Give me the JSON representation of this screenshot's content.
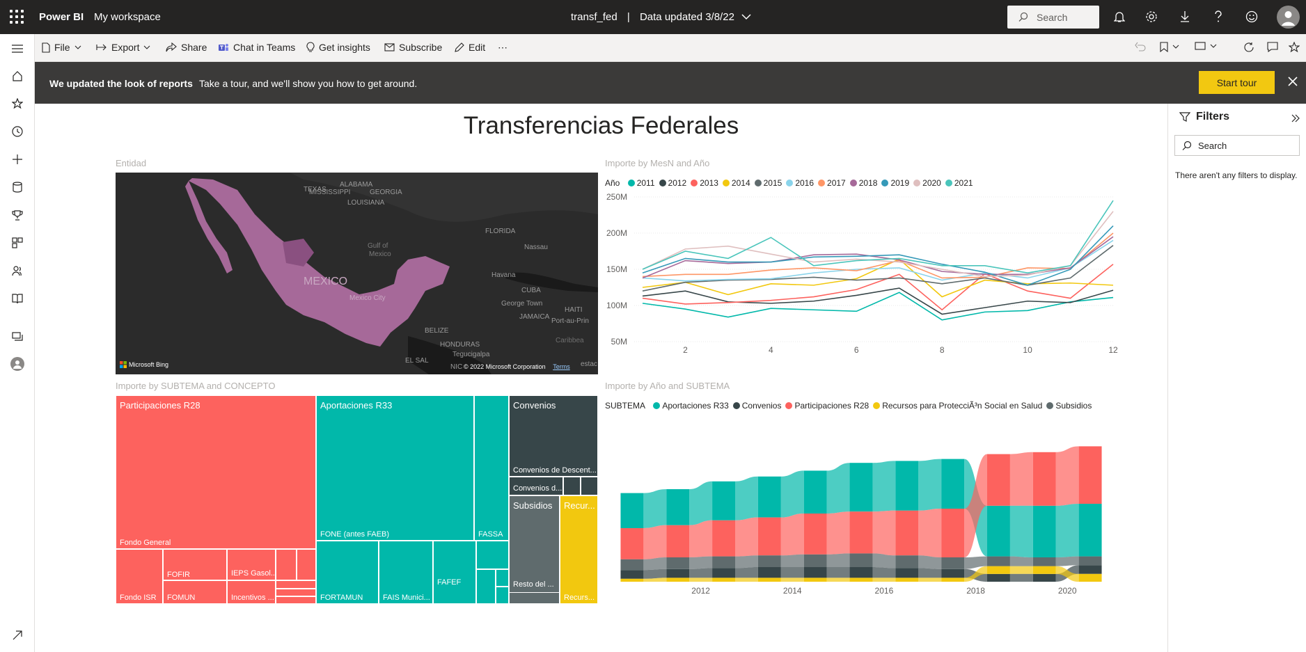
{
  "topbar": {
    "brand": "Power BI",
    "workspace": "My workspace",
    "report_name": "transf_fed",
    "separator": "|",
    "data_updated": "Data updated 3/8/22",
    "search_placeholder": "Search"
  },
  "toolbar": {
    "file": "File",
    "export": "Export",
    "share": "Share",
    "teams": "Chat in Teams",
    "insights": "Get insights",
    "subscribe": "Subscribe",
    "edit": "Edit",
    "more": "⋯"
  },
  "banner": {
    "bold": "We updated the look of reports",
    "text": "Take a tour, and we'll show you how to get around.",
    "button": "Start tour"
  },
  "filters": {
    "title": "Filters",
    "search_placeholder": "Search",
    "empty": "There aren't any filters to display."
  },
  "report": {
    "title": "Transferencias Federales"
  },
  "map": {
    "title": "Entidad",
    "labels": {
      "texas": "TEXAS",
      "mississippi": "MISSISSIPPI",
      "alabama": "ALABAMA",
      "georgia": "GEORGIA",
      "louisiana": "LOUISIANA",
      "florida": "FLORIDA",
      "gulf1": "Gulf of",
      "gulf2": "Mexico",
      "nassau": "Nassau",
      "havana": "Havana",
      "cuba": "CUBA",
      "george": "George Town",
      "jamaica": "JAMAICA",
      "haiti": "HAITI",
      "portau": "Port-au-Prin",
      "mexico": "MEXICO",
      "mexcity": "Mexico City",
      "belize": "BELIZE",
      "honduras": "HONDURAS",
      "tegu": "Tegucigalpa",
      "elsal": "EL SAL",
      "nic": "NIC",
      "carib": "Caribbea",
      "estac": "estac"
    },
    "bing": "Microsoft Bing",
    "copyright": "© 2022 Microsoft Corporation",
    "terms": "Terms"
  },
  "line_chart": {
    "title": "Importe by MesN and Año",
    "legend_label": "Año"
  },
  "treemap": {
    "title": "Importe by SUBTEMA and CONCEPTO",
    "tiles": {
      "part": "Participaciones R28",
      "fondo_general": "Fondo General",
      "fofir": "FOFIR",
      "ieps": "IEPS Gasol...",
      "fondo_isr": "Fondo ISR",
      "fomun": "FOMUN",
      "incentivos": "Incentivos ...",
      "aport": "Aportaciones R33",
      "fone": "FONE (antes FAEB)",
      "fassa": "FASSA",
      "fortamun": "FORTAMUN",
      "fais": "FAIS Munici...",
      "fafef": "FAFEF",
      "conv": "Convenios",
      "conv_desc": "Convenios de Descent...",
      "conv_d": "Convenios d...",
      "subs": "Subsidios",
      "resto": "Resto del ...",
      "recur": "Recur...",
      "recur2": "Recurs..."
    }
  },
  "ribbon_chart": {
    "title": "Importe by Año and SUBTEMA",
    "legend_label": "SUBTEMA"
  },
  "chart_data": [
    {
      "type": "line",
      "title": "Importe by MesN and Año",
      "legend_title": "Año",
      "x": [
        1,
        2,
        3,
        4,
        5,
        6,
        7,
        8,
        9,
        10,
        11,
        12
      ],
      "x_ticks": [
        2,
        4,
        6,
        8,
        10,
        12
      ],
      "y_ticks": [
        "50M",
        "100M",
        "150M",
        "200M",
        "250M"
      ],
      "ylim": [
        50,
        250
      ],
      "yunit": "M",
      "legend_position": "top-left",
      "series": [
        {
          "name": "2011",
          "color": "#01B8AA",
          "values": [
            103,
            95,
            84,
            96,
            94,
            92,
            118,
            80,
            91,
            93,
            105,
            111
          ]
        },
        {
          "name": "2012",
          "color": "#374649",
          "values": [
            113,
            120,
            105,
            103,
            106,
            114,
            124,
            88,
            97,
            106,
            104,
            121
          ]
        },
        {
          "name": "2013",
          "color": "#FD625E",
          "values": [
            110,
            102,
            104,
            107,
            112,
            122,
            143,
            94,
            144,
            120,
            110,
            157
          ]
        },
        {
          "name": "2014",
          "color": "#F2C80F",
          "values": [
            125,
            132,
            115,
            130,
            128,
            137,
            164,
            112,
            135,
            130,
            131,
            128
          ]
        },
        {
          "name": "2015",
          "color": "#5F6B6D",
          "values": [
            120,
            132,
            135,
            136,
            139,
            135,
            138,
            130,
            138,
            128,
            138,
            183
          ]
        },
        {
          "name": "2016",
          "color": "#8AD4EB",
          "values": [
            138,
            134,
            136,
            137,
            145,
            150,
            152,
            135,
            145,
            138,
            152,
            190
          ]
        },
        {
          "name": "2017",
          "color": "#FE9666",
          "values": [
            140,
            143,
            143,
            149,
            152,
            148,
            162,
            138,
            139,
            152,
            151,
            200
          ]
        },
        {
          "name": "2018",
          "color": "#A66999",
          "values": [
            138,
            162,
            158,
            160,
            170,
            171,
            163,
            147,
            143,
            143,
            152,
            195
          ]
        },
        {
          "name": "2019",
          "color": "#3599B8",
          "values": [
            145,
            165,
            160,
            160,
            167,
            168,
            170,
            157,
            146,
            128,
            150,
            210
          ]
        },
        {
          "name": "2020",
          "color": "#DFBFBF",
          "values": [
            150,
            178,
            182,
            171,
            160,
            164,
            160,
            150,
            140,
            142,
            155,
            230
          ]
        },
        {
          "name": "2021",
          "color": "#4AC5BB",
          "values": [
            150,
            175,
            165,
            194,
            155,
            162,
            165,
            155,
            155,
            145,
            155,
            245
          ]
        }
      ]
    },
    {
      "type": "treemap",
      "title": "Importe by SUBTEMA and CONCEPTO",
      "items": [
        {
          "group": "Participaciones R28",
          "children": [
            "Fondo General",
            "FOFIR",
            "IEPS Gasol...",
            "Fondo ISR",
            "FOMUN",
            "Incentivos ..."
          ]
        },
        {
          "group": "Aportaciones R33",
          "children": [
            "FONE (antes FAEB)",
            "FASSA",
            "FORTAMUN",
            "FAIS Munici...",
            "FAFEF"
          ]
        },
        {
          "group": "Convenios",
          "children": [
            "Convenios de Descent...",
            "Convenios d..."
          ]
        },
        {
          "group": "Subsidios",
          "children": [
            "Resto del ..."
          ]
        },
        {
          "group": "Recur...",
          "children": [
            "Recurs..."
          ]
        }
      ]
    },
    {
      "type": "ribbon",
      "title": "Importe by Año and SUBTEMA",
      "legend_title": "SUBTEMA",
      "legend_position": "top-left",
      "x": [
        2011,
        2012,
        2013,
        2014,
        2015,
        2016,
        2017,
        2018,
        2019,
        2020,
        2021
      ],
      "x_ticks": [
        2012,
        2014,
        2016,
        2018,
        2020
      ],
      "series": [
        {
          "name": "Aportaciones R33",
          "color": "#01B8AA",
          "values": [
            3.6,
            3.7,
            4.0,
            4.2,
            4.4,
            5.0,
            5.1,
            5.1,
            5.2,
            5.3,
            5.4
          ]
        },
        {
          "name": "Convenios",
          "color": "#374649",
          "values": [
            0.9,
            0.9,
            1.0,
            1.1,
            1.1,
            1.1,
            1.0,
            0.9,
            0.8,
            0.8,
            0.9
          ]
        },
        {
          "name": "Participaciones R28",
          "color": "#FD625E",
          "values": [
            3.2,
            3.3,
            3.7,
            3.9,
            4.2,
            4.3,
            4.6,
            5.0,
            5.3,
            5.5,
            5.9
          ]
        },
        {
          "name": "Recursos para ProtecciÃ³n Social en Salud",
          "color": "#F2C80F",
          "values": [
            0.3,
            0.4,
            0.4,
            0.4,
            0.4,
            0.4,
            0.4,
            0.4,
            0.8,
            0.8,
            0.8
          ]
        },
        {
          "name": "Subsidios",
          "color": "#5F6B6D",
          "values": [
            1.1,
            1.2,
            1.2,
            1.2,
            1.3,
            1.4,
            1.3,
            1.2,
            1.0,
            0.9,
            0.9
          ]
        }
      ]
    }
  ]
}
